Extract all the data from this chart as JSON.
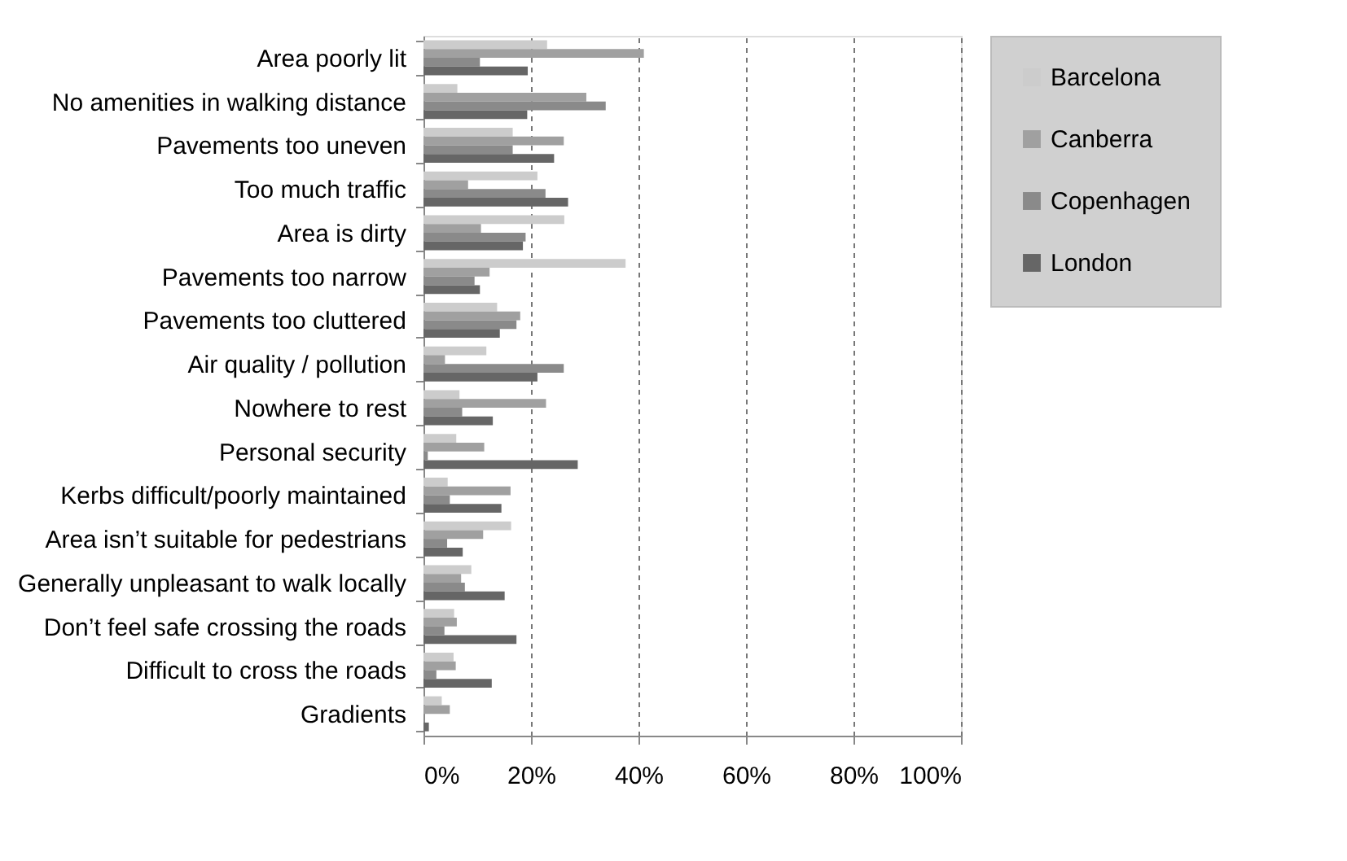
{
  "chart_data": {
    "type": "bar",
    "orientation": "horizontal",
    "categories": [
      "Area poorly lit",
      "No amenities in walking distance",
      "Pavements too uneven",
      "Too much traffic",
      "Area is dirty",
      "Pavements too narrow",
      "Pavements too cluttered",
      "Air quality / pollution",
      "Nowhere to rest",
      "Personal security",
      "Kerbs difficult/poorly maintained",
      "Area isn’t suitable for pedestrians",
      "Generally unpleasant to walk locally",
      "Don’t feel safe crossing the roads",
      "Difficult to cross the roads",
      "Gradients"
    ],
    "series": [
      {
        "name": "Barcelona",
        "color": "#cccccc",
        "values": [
          23.0,
          6.3,
          16.6,
          21.2,
          26.2,
          37.6,
          13.7,
          11.7,
          6.7,
          6.1,
          4.5,
          16.3,
          8.9,
          5.7,
          5.6,
          3.4
        ]
      },
      {
        "name": "Canberra",
        "color": "#a0a0a0",
        "values": [
          41.0,
          30.3,
          26.1,
          8.3,
          10.7,
          12.3,
          18.0,
          4.0,
          22.8,
          11.3,
          16.2,
          11.1,
          7.0,
          6.2,
          6.0,
          4.9
        ]
      },
      {
        "name": "Copenhagen",
        "color": "#8a8a8a",
        "values": [
          10.5,
          33.9,
          16.6,
          22.7,
          19.0,
          9.5,
          17.3,
          26.1,
          7.2,
          0.8,
          4.9,
          4.4,
          7.7,
          3.9,
          2.4,
          0
        ]
      },
      {
        "name": "London",
        "color": "#666666",
        "values": [
          19.4,
          19.3,
          24.3,
          26.9,
          18.5,
          10.5,
          14.2,
          21.2,
          12.9,
          28.7,
          14.5,
          7.3,
          15.1,
          17.3,
          12.7,
          1.0
        ]
      }
    ],
    "xlim": [
      0,
      100
    ],
    "xticks": [
      {
        "value": 0,
        "label": "0%"
      },
      {
        "value": 20,
        "label": "20%"
      },
      {
        "value": 40,
        "label": "40%"
      },
      {
        "value": 60,
        "label": "60%"
      },
      {
        "value": 80,
        "label": "80%"
      },
      {
        "value": 100,
        "label": "100%"
      }
    ],
    "grid": "x",
    "legend": "right"
  }
}
